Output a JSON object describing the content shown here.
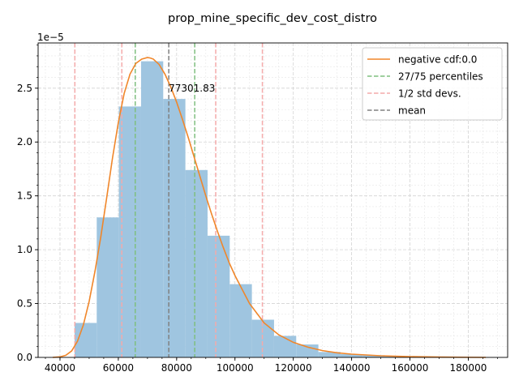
{
  "chart_data": {
    "type": "histogram",
    "title": "prop_mine_specific_dev_cost_distro",
    "xlabel": "",
    "ylabel": "",
    "y_scale_label": "1e−5",
    "xlim": [
      32500,
      193500
    ],
    "ylim": [
      0,
      2.92
    ],
    "x_ticks": [
      40000,
      60000,
      80000,
      100000,
      120000,
      140000,
      160000,
      180000
    ],
    "x_tick_labels": [
      "40000",
      "60000",
      "80000",
      "100000",
      "120000",
      "140000",
      "160000",
      "180000"
    ],
    "y_ticks": [
      0.0,
      0.5,
      1.0,
      1.5,
      2.0,
      2.5
    ],
    "y_tick_labels": [
      "0.0",
      "0.5",
      "1.0",
      "1.5",
      "2.0",
      "2.5"
    ],
    "grid": true,
    "legend_position": "top-right",
    "histogram": {
      "color": "#9fc5e0",
      "bin_edges": [
        45000,
        52600,
        60200,
        67800,
        75400,
        83000,
        90600,
        98200,
        105800,
        113400,
        121000,
        128600,
        136200,
        143800,
        151400,
        159000,
        166600,
        174200,
        181800,
        186000
      ],
      "values": [
        0.32,
        1.3,
        2.33,
        2.75,
        2.4,
        1.74,
        1.13,
        0.68,
        0.35,
        0.2,
        0.12,
        0.05,
        0.03,
        0.02,
        0.01,
        0.005,
        0.003,
        0.002,
        0.001
      ]
    },
    "curve": {
      "name": "negative cdf:0.0",
      "color": "#f0862a",
      "x": [
        37500,
        40000,
        42000,
        44000,
        46000,
        48000,
        50000,
        52000,
        54000,
        56000,
        58000,
        60000,
        62000,
        64000,
        66000,
        68000,
        70000,
        71000,
        72000,
        74000,
        76000,
        78000,
        80000,
        82000,
        84000,
        86000,
        88000,
        90000,
        92000,
        94000,
        96000,
        98000,
        100000,
        105000,
        110000,
        115000,
        120000,
        125000,
        130000,
        135000,
        140000,
        150000,
        160000,
        170000,
        180000,
        186000
      ],
      "y": [
        0.0,
        0.005,
        0.02,
        0.06,
        0.15,
        0.3,
        0.52,
        0.8,
        1.12,
        1.48,
        1.85,
        2.18,
        2.45,
        2.63,
        2.73,
        2.77,
        2.785,
        2.78,
        2.77,
        2.72,
        2.63,
        2.51,
        2.37,
        2.21,
        2.04,
        1.86,
        1.68,
        1.5,
        1.33,
        1.17,
        1.02,
        0.88,
        0.76,
        0.5,
        0.32,
        0.21,
        0.14,
        0.095,
        0.063,
        0.043,
        0.03,
        0.015,
        0.007,
        0.003,
        0.001,
        0.0
      ]
    },
    "vlines": [
      {
        "group": "27/75 percentiles",
        "color": "#7fbf7f",
        "x": [
          65800,
          86200
        ]
      },
      {
        "group": "1/2 std devs.",
        "color": "#f4aaaa",
        "x": [
          45100,
          61200,
          93400,
          109400
        ]
      },
      {
        "group": "mean",
        "color": "#808080",
        "x": [
          77302
        ]
      }
    ],
    "annotation": {
      "text": "77301.83",
      "x": 77302,
      "y": 2.5
    },
    "legend": [
      {
        "label": "negative cdf:0.0",
        "color": "#f0862a",
        "style": "solid"
      },
      {
        "label": "27/75 percentiles",
        "color": "#7fbf7f",
        "style": "dashed"
      },
      {
        "label": "1/2 std devs.",
        "color": "#f4aaaa",
        "style": "dashed"
      },
      {
        "label": "mean",
        "color": "#808080",
        "style": "dashed"
      }
    ]
  }
}
